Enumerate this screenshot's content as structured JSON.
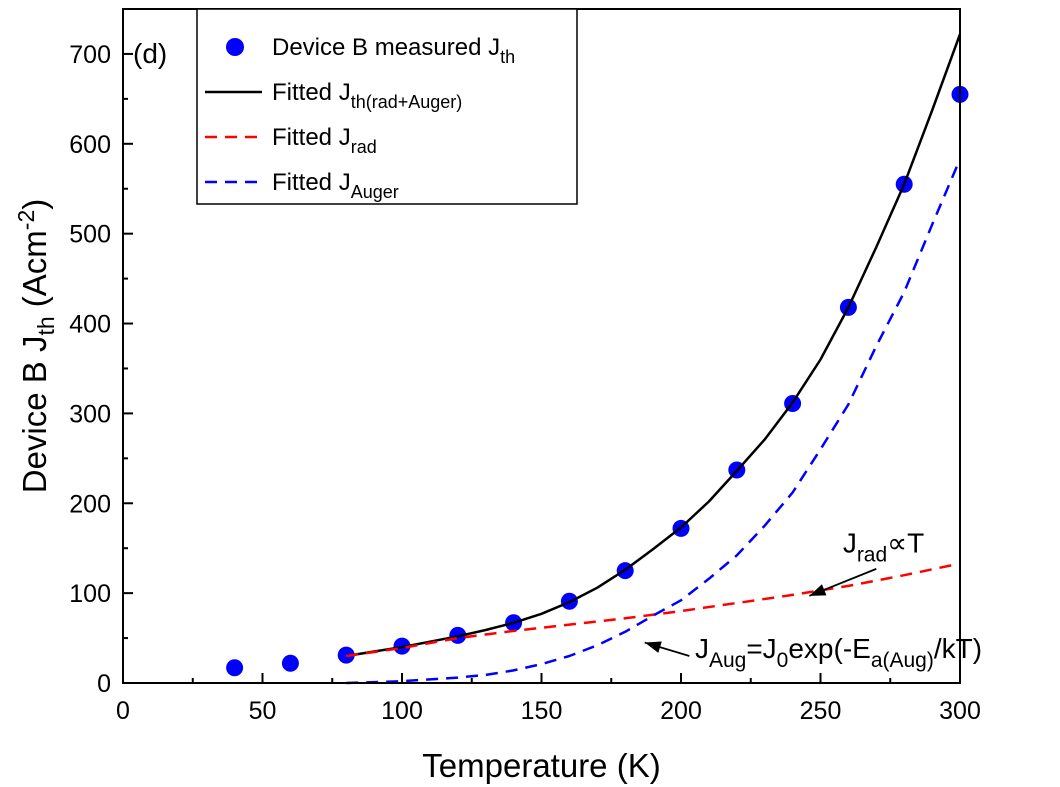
{
  "chart_data": {
    "type": "line",
    "panel_label": "(d)",
    "xlabel": "Temperature (K)",
    "ylabel": {
      "main": "Device B J",
      "sub": "th",
      "unit": " (Acm",
      "sup": "-2",
      "close": ")"
    },
    "xlim": [
      0,
      300
    ],
    "ylim": [
      0,
      750
    ],
    "xticks": [
      0,
      50,
      100,
      150,
      200,
      250,
      300
    ],
    "yticks": [
      0,
      100,
      200,
      300,
      400,
      500,
      600,
      700
    ],
    "grid": false,
    "legend_position": "top-left",
    "series": [
      {
        "id": "measured",
        "kind": "scatter",
        "color": "#0000ff",
        "legend": {
          "main": "Device B measured J",
          "sub": "th"
        },
        "x": [
          40,
          60,
          80,
          100,
          120,
          140,
          160,
          180,
          200,
          220,
          240,
          260,
          280,
          300
        ],
        "y": [
          17,
          22,
          31,
          41,
          53,
          67,
          91,
          125,
          172,
          237,
          311,
          418,
          555,
          655
        ]
      },
      {
        "id": "fit_total",
        "kind": "line",
        "dash": "solid",
        "color": "#000000",
        "legend": {
          "main": "Fitted J",
          "sub": "th(rad+Auger)"
        },
        "x": [
          80,
          90,
          100,
          110,
          120,
          130,
          140,
          150,
          160,
          170,
          180,
          190,
          200,
          210,
          220,
          230,
          240,
          250,
          260,
          270,
          280,
          290,
          300
        ],
        "y": [
          30,
          35,
          40,
          46,
          52,
          59,
          67,
          77,
          90,
          106,
          126,
          149,
          173,
          202,
          236,
          271,
          312,
          360,
          418,
          485,
          555,
          637,
          722
        ]
      },
      {
        "id": "fit_rad",
        "kind": "line",
        "dash": "dashed",
        "color": "#ff0000",
        "legend": {
          "main": "Fitted J",
          "sub": "rad"
        },
        "x": [
          80,
          100,
          120,
          140,
          160,
          180,
          200,
          220,
          240,
          260,
          280,
          300
        ],
        "y": [
          30,
          39,
          50,
          58,
          65,
          72,
          80,
          89,
          98,
          108,
          120,
          133
        ]
      },
      {
        "id": "fit_auger",
        "kind": "line",
        "dash": "dashed",
        "color": "#0000ff",
        "legend": {
          "main": "Fitted J",
          "sub": "Auger"
        },
        "x": [
          80,
          100,
          110,
          120,
          130,
          140,
          150,
          160,
          170,
          180,
          190,
          200,
          210,
          220,
          230,
          240,
          250,
          260,
          270,
          280,
          290,
          300
        ],
        "y": [
          0,
          2,
          4,
          6,
          9,
          14,
          21,
          30,
          42,
          57,
          75,
          92,
          116,
          142,
          175,
          212,
          260,
          310,
          375,
          435,
          510,
          583
        ]
      }
    ],
    "annotations": [
      {
        "id": "rad_annot",
        "parts": [
          {
            "t": "J",
            "s": "base"
          },
          {
            "t": "rad",
            "s": "sub"
          },
          {
            "t": "∝T",
            "s": "base"
          }
        ],
        "text_at": [
          258,
          145
        ],
        "arrow_from": [
          270,
          127
        ],
        "arrow_to": [
          246,
          97
        ]
      },
      {
        "id": "aug_annot",
        "parts": [
          {
            "t": "J",
            "s": "base"
          },
          {
            "t": "Aug",
            "s": "sub"
          },
          {
            "t": "=J",
            "s": "base"
          },
          {
            "t": "0",
            "s": "sub"
          },
          {
            "t": "exp(-E",
            "s": "base"
          },
          {
            "t": "a(Aug)",
            "s": "sub"
          },
          {
            "t": "/kT)",
            "s": "base"
          }
        ],
        "text_at": [
          205,
          28
        ],
        "arrow_from": [
          203,
          30
        ],
        "arrow_to": [
          187,
          45
        ]
      }
    ]
  }
}
